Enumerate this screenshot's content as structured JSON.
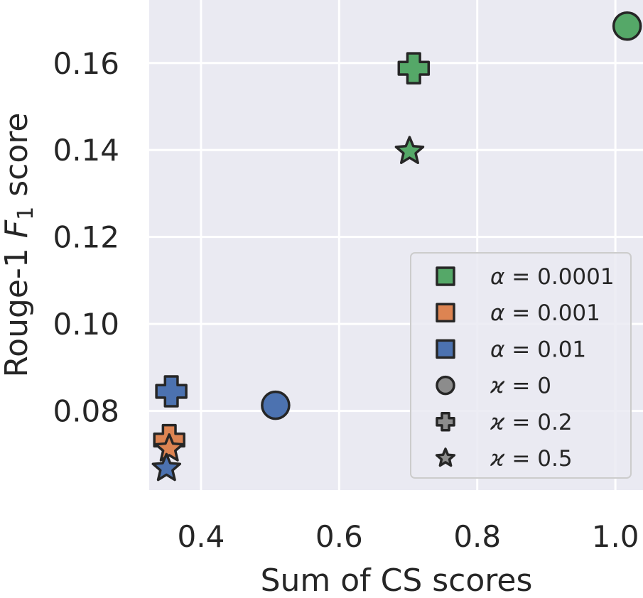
{
  "chart_data": {
    "type": "scatter",
    "xlabel": "Sum of CS scores",
    "ylabel": {
      "prefix": "Rouge-1 ",
      "italic": "F",
      "sub": "1",
      "suffix": " score"
    },
    "xlim": [
      0.325,
      1.04
    ],
    "ylim": [
      0.0618,
      0.1745
    ],
    "xticks": [
      0.4,
      0.6,
      0.8,
      1.0
    ],
    "xtick_labels": [
      "0.4",
      "0.6",
      "0.8",
      "1.0"
    ],
    "yticks": [
      0.08,
      0.1,
      0.12,
      0.14,
      0.16
    ],
    "ytick_labels": [
      "0.08",
      "0.10",
      "0.12",
      "0.14",
      "0.16"
    ],
    "grid": true,
    "background": "#eaeaf2",
    "colors": {
      "alpha_0.0001": "#55a868",
      "alpha_0.001": "#dd8452",
      "alpha_0.01": "#4c72b0",
      "neutral": "#8c8c8c"
    },
    "points": [
      {
        "alpha": "0.0001",
        "kappa": "0",
        "x": 1.017,
        "y": 0.1685,
        "marker": "circle",
        "color": "#55a868"
      },
      {
        "alpha": "0.0001",
        "kappa": "0.2",
        "x": 0.708,
        "y": 0.1588,
        "marker": "plus",
        "color": "#55a868"
      },
      {
        "alpha": "0.0001",
        "kappa": "0.5",
        "x": 0.702,
        "y": 0.1397,
        "marker": "star",
        "color": "#55a868"
      },
      {
        "alpha": "0.01",
        "kappa": "0",
        "x": 0.508,
        "y": 0.0813,
        "marker": "circle",
        "color": "#4c72b0"
      },
      {
        "alpha": "0.01",
        "kappa": "0.2",
        "x": 0.357,
        "y": 0.0845,
        "marker": "plus",
        "color": "#4c72b0"
      },
      {
        "alpha": "0.001",
        "kappa": "0.2",
        "x": 0.354,
        "y": 0.0733,
        "marker": "plus",
        "color": "#dd8452"
      },
      {
        "alpha": "0.001",
        "kappa": "0.5",
        "x": 0.354,
        "y": 0.0713,
        "marker": "star",
        "color": "#dd8452"
      },
      {
        "alpha": "0.01",
        "kappa": "0.5",
        "x": 0.35,
        "y": 0.0668,
        "marker": "star",
        "color": "#4c72b0"
      }
    ],
    "legend": {
      "placement": "lower-right",
      "entries": [
        {
          "symbol": "α",
          "value": "0.0001",
          "marker": "square",
          "color": "#55a868"
        },
        {
          "symbol": "α",
          "value": "0.001",
          "marker": "square",
          "color": "#dd8452"
        },
        {
          "symbol": "α",
          "value": "0.01",
          "marker": "square",
          "color": "#4c72b0"
        },
        {
          "symbol": "ϰ",
          "value": "0",
          "marker": "circle",
          "color": "#8c8c8c"
        },
        {
          "symbol": "ϰ",
          "value": "0.2",
          "marker": "plus",
          "color": "#8c8c8c"
        },
        {
          "symbol": "ϰ",
          "value": "0.5",
          "marker": "star",
          "color": "#8c8c8c"
        }
      ]
    }
  }
}
